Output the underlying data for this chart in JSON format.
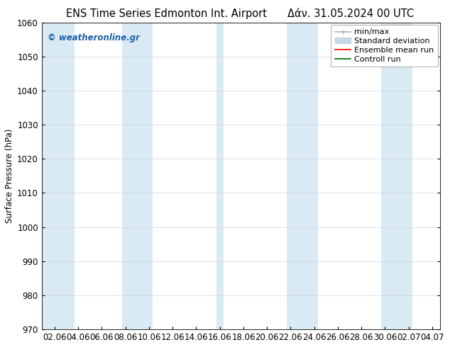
{
  "title_left": "ENS Time Series Edmonton Int. Airport",
  "title_right": "Δάν. 31.05.2024 00 UTC",
  "ylabel": "Surface Pressure (hPa)",
  "ylim": [
    970,
    1060
  ],
  "yticks": [
    970,
    980,
    990,
    1000,
    1010,
    1020,
    1030,
    1040,
    1050,
    1060
  ],
  "x_labels": [
    "02.06",
    "04.06",
    "06.06",
    "08.06",
    "10.06",
    "12.06",
    "14.06",
    "16.06",
    "18.06",
    "20.06",
    "22.06",
    "24.06",
    "26.06",
    "28.06",
    "30.06",
    "02.07",
    "04.07"
  ],
  "band_color": "#daeaf5",
  "watermark": "© weatheronline.gr",
  "watermark_color": "#1e5faa",
  "bg_color": "#ffffff",
  "grid_color": "#aaaaaa",
  "font_size": 8.5,
  "title_font_size": 10.5,
  "legend_font_size": 8
}
